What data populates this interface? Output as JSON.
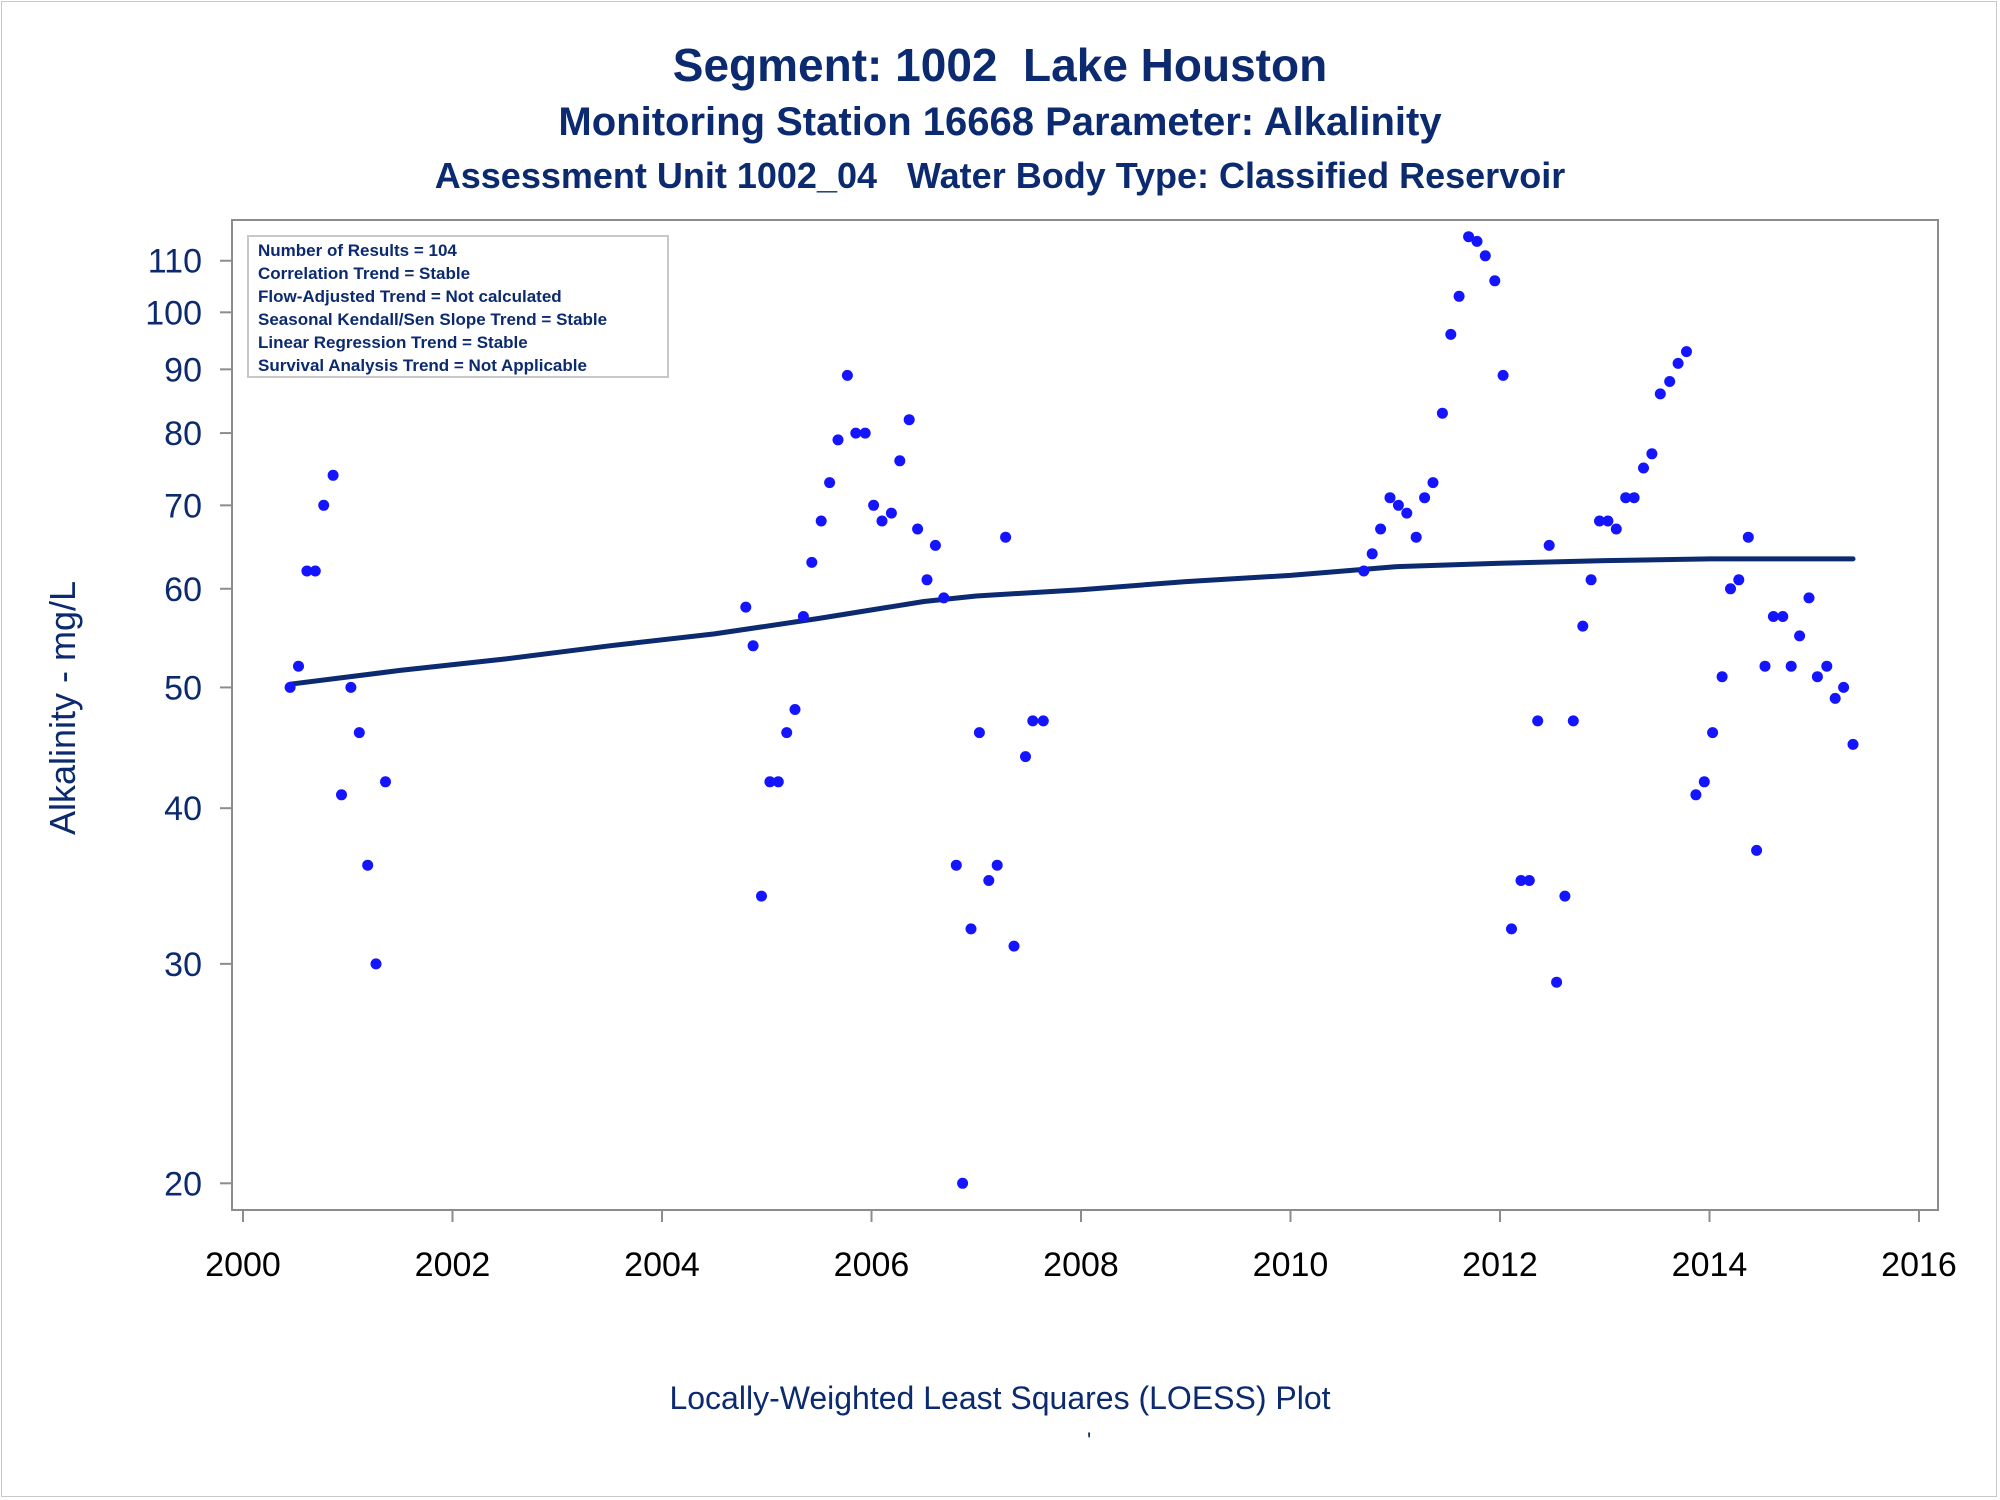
{
  "titles": {
    "line1": "Segment: 1002  Lake Houston",
    "line2": "Monitoring Station 16668 Parameter: Alkalinity",
    "line3": "Assessment Unit 1002_04   Water Body Type: Classified Reservoir"
  },
  "footnote": "Locally-Weighted Least Squares (LOESS) Plot",
  "footnote_mark": "'",
  "colors": {
    "title": "#0b2a6f",
    "points": "#1414ff",
    "loess": "#0b2a6f",
    "axis": "#8c8c8c"
  },
  "chart_data": {
    "type": "scatter",
    "ylabel": "Alkalinity - mg/L",
    "xlabel": "",
    "y_scale": "log",
    "xlim": [
      2000,
      2016
    ],
    "ylim": [
      19.5,
      116
    ],
    "x_ticks": [
      "2000",
      "2002",
      "2004",
      "2006",
      "2008",
      "2010",
      "2012",
      "2014",
      "2016"
    ],
    "y_ticks": [
      "20",
      "30",
      "40",
      "50",
      "60",
      "70",
      "80",
      "90",
      "100",
      "110"
    ],
    "grid": false,
    "legend_position": "top-left",
    "stats_box": [
      "Number of Results = 104",
      "Correlation Trend = Stable",
      "Flow-Adjusted Trend = Not calculated",
      "Seasonal Kendall/Sen Slope Trend = Stable",
      "Linear Regression Trend = Stable",
      "Survival Analysis Trend = Not Applicable"
    ],
    "points": [
      [
        2000.45,
        50
      ],
      [
        2000.53,
        52
      ],
      [
        2000.61,
        62
      ],
      [
        2000.69,
        62
      ],
      [
        2000.77,
        70
      ],
      [
        2000.86,
        74
      ],
      [
        2000.94,
        41
      ],
      [
        2001.03,
        50
      ],
      [
        2001.11,
        46
      ],
      [
        2001.19,
        36
      ],
      [
        2001.27,
        30
      ],
      [
        2001.36,
        42
      ],
      [
        2004.8,
        58
      ],
      [
        2004.87,
        54
      ],
      [
        2004.95,
        34
      ],
      [
        2005.03,
        42
      ],
      [
        2005.11,
        42
      ],
      [
        2005.19,
        46
      ],
      [
        2005.27,
        48
      ],
      [
        2005.35,
        57
      ],
      [
        2005.43,
        63
      ],
      [
        2005.52,
        68
      ],
      [
        2005.6,
        73
      ],
      [
        2005.68,
        79
      ],
      [
        2005.77,
        89
      ],
      [
        2005.85,
        80
      ],
      [
        2005.94,
        80
      ],
      [
        2006.02,
        70
      ],
      [
        2006.1,
        68
      ],
      [
        2006.19,
        69
      ],
      [
        2006.27,
        76
      ],
      [
        2006.36,
        82
      ],
      [
        2006.44,
        67
      ],
      [
        2006.53,
        61
      ],
      [
        2006.61,
        65
      ],
      [
        2006.69,
        59
      ],
      [
        2006.81,
        36
      ],
      [
        2006.87,
        20
      ],
      [
        2006.95,
        32
      ],
      [
        2007.03,
        46
      ],
      [
        2007.12,
        35
      ],
      [
        2007.2,
        36
      ],
      [
        2007.28,
        66
      ],
      [
        2007.36,
        31
      ],
      [
        2007.47,
        44
      ],
      [
        2007.54,
        47
      ],
      [
        2007.64,
        47
      ],
      [
        2010.7,
        62
      ],
      [
        2010.78,
        64
      ],
      [
        2010.86,
        67
      ],
      [
        2010.95,
        71
      ],
      [
        2011.03,
        70
      ],
      [
        2011.11,
        69
      ],
      [
        2011.2,
        66
      ],
      [
        2011.28,
        71
      ],
      [
        2011.36,
        73
      ],
      [
        2011.45,
        83
      ],
      [
        2011.53,
        96
      ],
      [
        2011.61,
        103
      ],
      [
        2011.7,
        115
      ],
      [
        2011.78,
        114
      ],
      [
        2011.86,
        111
      ],
      [
        2011.95,
        106
      ],
      [
        2012.03,
        89
      ],
      [
        2012.11,
        32
      ],
      [
        2012.2,
        35
      ],
      [
        2012.28,
        35
      ],
      [
        2012.36,
        47
      ],
      [
        2012.47,
        65
      ],
      [
        2012.54,
        29
      ],
      [
        2012.62,
        34
      ],
      [
        2012.7,
        47
      ],
      [
        2012.79,
        56
      ],
      [
        2012.87,
        61
      ],
      [
        2012.95,
        68
      ],
      [
        2013.03,
        68
      ],
      [
        2013.11,
        67
      ],
      [
        2013.2,
        71
      ],
      [
        2013.28,
        71
      ],
      [
        2013.37,
        75
      ],
      [
        2013.45,
        77
      ],
      [
        2013.53,
        86
      ],
      [
        2013.62,
        88
      ],
      [
        2013.7,
        91
      ],
      [
        2013.78,
        93
      ],
      [
        2013.87,
        41
      ],
      [
        2013.95,
        42
      ],
      [
        2014.03,
        46
      ],
      [
        2014.12,
        51
      ],
      [
        2014.2,
        60
      ],
      [
        2014.28,
        61
      ],
      [
        2014.37,
        66
      ],
      [
        2014.45,
        37
      ],
      [
        2014.53,
        52
      ],
      [
        2014.61,
        57
      ],
      [
        2014.7,
        57
      ],
      [
        2014.78,
        52
      ],
      [
        2014.86,
        55
      ],
      [
        2014.95,
        59
      ],
      [
        2015.03,
        51
      ],
      [
        2015.12,
        52
      ],
      [
        2015.2,
        49
      ],
      [
        2015.28,
        50
      ],
      [
        2015.37,
        45
      ]
    ],
    "loess_curve": [
      [
        2000.45,
        50.3
      ],
      [
        2001.5,
        51.6
      ],
      [
        2002.5,
        52.7
      ],
      [
        2003.5,
        54.0
      ],
      [
        2004.5,
        55.2
      ],
      [
        2005.5,
        56.8
      ],
      [
        2006.5,
        58.6
      ],
      [
        2007.0,
        59.2
      ],
      [
        2008.0,
        59.9
      ],
      [
        2009.0,
        60.8
      ],
      [
        2010.0,
        61.5
      ],
      [
        2011.0,
        62.5
      ],
      [
        2012.0,
        62.9
      ],
      [
        2013.0,
        63.2
      ],
      [
        2014.0,
        63.4
      ],
      [
        2015.37,
        63.4
      ]
    ]
  }
}
